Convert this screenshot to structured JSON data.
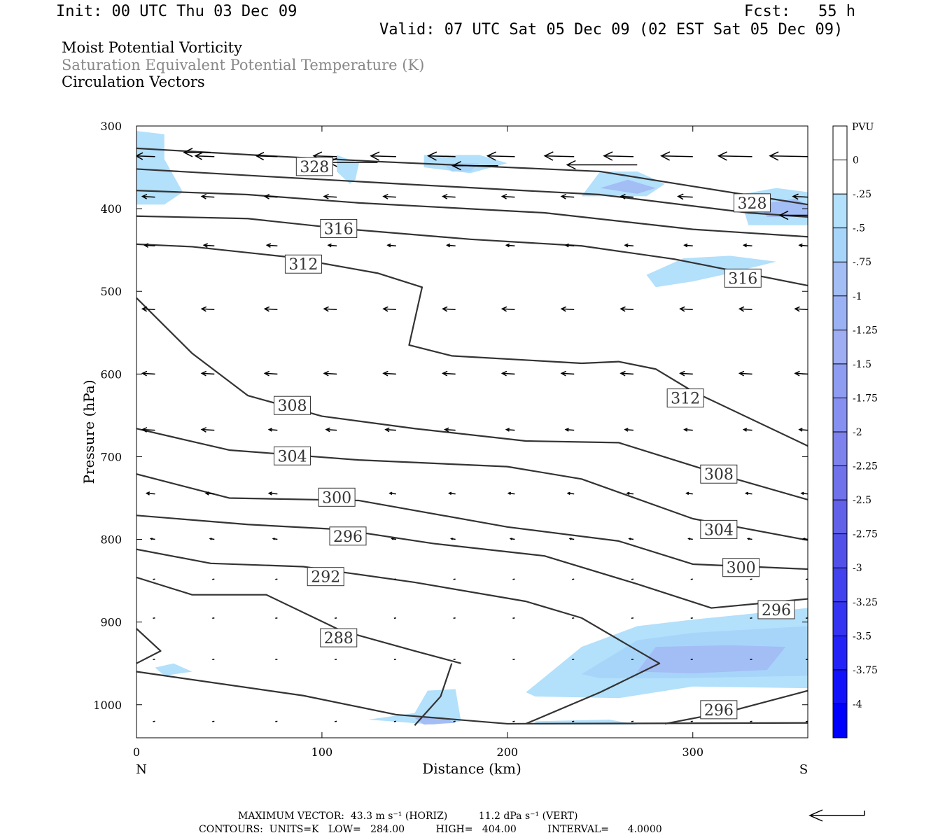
{
  "header": {
    "init": "Init: 00 UTC Thu 03 Dec 09",
    "fcst": "Fcst:   55 h",
    "valid": "Valid: 07 UTC Sat 05 Dec 09 (02 EST Sat 05 Dec 09)"
  },
  "fields": {
    "line1": "Moist Potential Vorticity",
    "line2": "Saturation Equivalent Potential Temperature (K)",
    "line3": "Circulation Vectors"
  },
  "footer": {
    "max_vector": "MAXIMUM VECTOR:  43.3 m s⁻¹ (HORIZ)          11.2 dPa s⁻¹ (VERT)",
    "contours": "CONTOURS:  UNITS=K   LOW=   284.00          HIGH=   404.00          INTERVAL=      4.0000"
  },
  "colors": {
    "contour": "#333333",
    "pv_light": "#b3e0fb",
    "pv_mid": "#a3bdf5",
    "pv_dark": "#7d82ec",
    "pv_max": "#0000ff"
  },
  "chart_data": {
    "type": "cross-section",
    "xlabel": "Distance (km)",
    "ylabel": "Pressure (hPa)",
    "xlim": [
      0,
      362
    ],
    "ylim": [
      1040,
      300
    ],
    "xticks": [
      0,
      100,
      200,
      300
    ],
    "yticks": [
      300,
      400,
      500,
      600,
      700,
      800,
      900,
      1000
    ],
    "x_end_labels": [
      "N",
      "S"
    ],
    "colorbar": {
      "title": "PVU",
      "levels": [
        "0",
        "-.25",
        "-.5",
        "-.75",
        "-1",
        "-1.25",
        "-1.5",
        "-1.75",
        "-2",
        "-2.25",
        "-2.5",
        "-2.75",
        "-3",
        "-3.25",
        "-3.5",
        "-3.75",
        "-4"
      ],
      "colors": [
        "#ffffff",
        "#ffffff",
        "#b3e0fb",
        "#a7d5fa",
        "#a3bdf5",
        "#9ab1f4",
        "#9fadf2",
        "#8e9df1",
        "#8690f0",
        "#7d82ec",
        "#6f72ea",
        "#6161e9",
        "#5151ea",
        "#4242ef",
        "#3434f2",
        "#2323f7",
        "#1212fa",
        "#0000ff"
      ]
    },
    "contour_labels": [
      {
        "value": "328",
        "x": 96,
        "p": 349
      },
      {
        "value": "328",
        "x": 332,
        "p": 393
      },
      {
        "value": "316",
        "x": 109,
        "p": 424
      },
      {
        "value": "316",
        "x": 327,
        "p": 484
      },
      {
        "value": "312",
        "x": 90,
        "p": 467
      },
      {
        "value": "312",
        "x": 296,
        "p": 629
      },
      {
        "value": "308",
        "x": 84,
        "p": 638
      },
      {
        "value": "308",
        "x": 314,
        "p": 721
      },
      {
        "value": "304",
        "x": 84,
        "p": 699
      },
      {
        "value": "304",
        "x": 314,
        "p": 788
      },
      {
        "value": "300",
        "x": 108,
        "p": 749
      },
      {
        "value": "300",
        "x": 326,
        "p": 834
      },
      {
        "value": "296",
        "x": 114,
        "p": 796
      },
      {
        "value": "296",
        "x": 345,
        "p": 885
      },
      {
        "value": "296",
        "x": 314,
        "p": 1006
      },
      {
        "value": "292",
        "x": 102,
        "p": 845
      },
      {
        "value": "288",
        "x": 109,
        "p": 919
      }
    ],
    "contours": [
      {
        "value": 328,
        "points": [
          [
            0,
            327
          ],
          [
            70,
            336
          ],
          [
            130,
            343
          ],
          [
            200,
            350
          ],
          [
            250,
            355
          ],
          [
            300,
            373
          ],
          [
            362,
            395
          ]
        ]
      },
      {
        "value": 324,
        "points": [
          [
            0,
            352
          ],
          [
            70,
            361
          ],
          [
            150,
            371
          ],
          [
            250,
            383
          ],
          [
            330,
            405
          ],
          [
            362,
            410
          ]
        ]
      },
      {
        "value": 320,
        "points": [
          [
            0,
            378
          ],
          [
            60,
            383
          ],
          [
            120,
            393
          ],
          [
            220,
            405
          ],
          [
            300,
            425
          ],
          [
            362,
            434
          ]
        ]
      },
      {
        "value": 316,
        "points": [
          [
            0,
            409
          ],
          [
            60,
            412
          ],
          [
            110,
            424
          ],
          [
            180,
            437
          ],
          [
            240,
            445
          ],
          [
            290,
            461
          ],
          [
            362,
            493
          ]
        ]
      },
      {
        "value": 312,
        "points": [
          [
            0,
            443
          ],
          [
            30,
            446
          ],
          [
            80,
            458
          ],
          [
            130,
            478
          ],
          [
            154,
            495
          ],
          [
            147,
            565
          ],
          [
            170,
            578
          ],
          [
            240,
            587
          ],
          [
            260,
            585
          ],
          [
            280,
            594
          ],
          [
            300,
            621
          ],
          [
            362,
            687
          ]
        ]
      },
      {
        "value": 308,
        "points": [
          [
            0,
            508
          ],
          [
            30,
            575
          ],
          [
            60,
            626
          ],
          [
            100,
            651
          ],
          [
            150,
            666
          ],
          [
            210,
            681
          ],
          [
            260,
            683
          ],
          [
            320,
            725
          ],
          [
            362,
            752
          ]
        ]
      },
      {
        "value": 304,
        "points": [
          [
            0,
            666
          ],
          [
            50,
            692
          ],
          [
            120,
            704
          ],
          [
            200,
            712
          ],
          [
            240,
            727
          ],
          [
            300,
            775
          ],
          [
            362,
            801
          ]
        ]
      },
      {
        "value": 300,
        "points": [
          [
            0,
            721
          ],
          [
            50,
            750
          ],
          [
            120,
            753
          ],
          [
            200,
            785
          ],
          [
            260,
            802
          ],
          [
            300,
            830
          ],
          [
            362,
            836
          ]
        ]
      },
      {
        "value": 296,
        "points": [
          [
            0,
            771
          ],
          [
            60,
            782
          ],
          [
            110,
            788
          ],
          [
            160,
            805
          ],
          [
            220,
            820
          ],
          [
            270,
            854
          ],
          [
            310,
            883
          ],
          [
            362,
            872
          ]
        ]
      },
      {
        "value": 292,
        "points": [
          [
            0,
            812
          ],
          [
            40,
            829
          ],
          [
            90,
            833
          ],
          [
            150,
            852
          ],
          [
            210,
            875
          ],
          [
            240,
            895
          ]
        ]
      },
      {
        "value": 288,
        "points": [
          [
            0,
            846
          ],
          [
            30,
            867
          ],
          [
            70,
            867
          ],
          [
            110,
            910
          ],
          [
            150,
            935
          ],
          [
            175,
            950
          ]
        ]
      },
      {
        "value": 288,
        "points": [
          [
            170,
            950
          ],
          [
            164,
            990
          ],
          [
            150,
            1025
          ]
        ]
      },
      {
        "value": 292,
        "points": [
          [
            240,
            895
          ],
          [
            282,
            950
          ],
          [
            250,
            985
          ],
          [
            210,
            1023
          ]
        ]
      },
      {
        "value": 296,
        "points": [
          [
            285,
            1023
          ],
          [
            320,
            1008
          ],
          [
            362,
            983
          ]
        ]
      },
      {
        "value": 284,
        "points": [
          [
            0,
            908
          ],
          [
            13,
            935
          ],
          [
            0,
            950
          ]
        ]
      },
      {
        "value": 284,
        "points": [
          [
            0,
            960
          ],
          [
            90,
            989
          ],
          [
            140,
            1012
          ],
          [
            200,
            1023
          ],
          [
            362,
            1022
          ]
        ]
      }
    ],
    "pv_regions": [
      {
        "level": -0.25,
        "points": [
          [
            0,
            306
          ],
          [
            15,
            310
          ],
          [
            15,
            340
          ],
          [
            25,
            380
          ],
          [
            15,
            395
          ],
          [
            0,
            395
          ]
        ]
      },
      {
        "level": -0.25,
        "points": [
          [
            108,
            335
          ],
          [
            120,
            345
          ],
          [
            118,
            365
          ],
          [
            115,
            370
          ],
          [
            108,
            355
          ]
        ]
      },
      {
        "level": -0.25,
        "points": [
          [
            155,
            335
          ],
          [
            185,
            335
          ],
          [
            200,
            345
          ],
          [
            180,
            357
          ],
          [
            155,
            350
          ]
        ]
      },
      {
        "level": -0.5,
        "points": [
          [
            165,
            345
          ],
          [
            185,
            345
          ],
          [
            180,
            355
          ],
          [
            170,
            355
          ]
        ]
      },
      {
        "level": -0.25,
        "points": [
          [
            240,
            385
          ],
          [
            250,
            355
          ],
          [
            270,
            355
          ],
          [
            285,
            370
          ],
          [
            275,
            385
          ]
        ]
      },
      {
        "level": -1,
        "points": [
          [
            250,
            375
          ],
          [
            265,
            365
          ],
          [
            280,
            375
          ],
          [
            270,
            382
          ]
        ]
      },
      {
        "level": -0.25,
        "points": [
          [
            325,
            383
          ],
          [
            345,
            375
          ],
          [
            362,
            380
          ],
          [
            362,
            420
          ],
          [
            330,
            420
          ]
        ]
      },
      {
        "level": -1,
        "points": [
          [
            335,
            395
          ],
          [
            355,
            388
          ],
          [
            362,
            395
          ],
          [
            362,
            410
          ],
          [
            340,
            410
          ]
        ]
      },
      {
        "level": -0.25,
        "points": [
          [
            275,
            480
          ],
          [
            295,
            460
          ],
          [
            320,
            457
          ],
          [
            345,
            464
          ],
          [
            320,
            478
          ],
          [
            300,
            488
          ],
          [
            280,
            495
          ]
        ]
      },
      {
        "level": -0.25,
        "points": [
          [
            210,
            985
          ],
          [
            240,
            930
          ],
          [
            270,
            905
          ],
          [
            300,
            897
          ],
          [
            362,
            883
          ],
          [
            362,
            980
          ],
          [
            300,
            978
          ],
          [
            260,
            992
          ],
          [
            215,
            990
          ]
        ]
      },
      {
        "level": -0.75,
        "points": [
          [
            240,
            963
          ],
          [
            270,
            922
          ],
          [
            300,
            913
          ],
          [
            362,
            905
          ],
          [
            362,
            965
          ],
          [
            290,
            968
          ],
          [
            250,
            968
          ]
        ]
      },
      {
        "level": -1,
        "points": [
          [
            270,
            960
          ],
          [
            280,
            930
          ],
          [
            320,
            928
          ],
          [
            350,
            930
          ],
          [
            340,
            958
          ],
          [
            300,
            962
          ]
        ]
      },
      {
        "level": -0.25,
        "points": [
          [
            10,
            955
          ],
          [
            20,
            950
          ],
          [
            30,
            960
          ],
          [
            15,
            965
          ]
        ]
      },
      {
        "level": -0.25,
        "points": [
          [
            125,
            1018
          ],
          [
            150,
            1010
          ],
          [
            157,
            983
          ],
          [
            172,
            981
          ],
          [
            175,
            1020
          ],
          [
            160,
            1024
          ]
        ]
      },
      {
        "level": -1,
        "points": [
          [
            150,
            1016
          ],
          [
            165,
            1015
          ],
          [
            172,
            1022
          ],
          [
            155,
            1024
          ]
        ]
      },
      {
        "level": -0.25,
        "points": [
          [
            215,
            1020
          ],
          [
            255,
            1018
          ],
          [
            270,
            1024
          ],
          [
            215,
            1024
          ]
        ]
      }
    ],
    "vectors_long": [
      {
        "x": 40,
        "p": 332,
        "u": -38,
        "w": 0
      },
      {
        "x": 130,
        "p": 344,
        "u": -70,
        "w": 0
      },
      {
        "x": 195,
        "p": 348,
        "u": -65,
        "w": 0
      },
      {
        "x": 270,
        "p": 347,
        "u": -100,
        "w": 0
      },
      {
        "x": 362,
        "p": 408,
        "u": -40,
        "w": 0
      }
    ],
    "vector_grid": {
      "x": [
        10,
        42,
        76,
        108,
        140,
        172,
        204,
        236,
        268,
        300,
        332,
        362
      ],
      "p": [
        337,
        386,
        445,
        522,
        600,
        668,
        745,
        800,
        848,
        895,
        945,
        1020
      ],
      "u": [
        [
          -18,
          -18,
          -20,
          -22,
          -24,
          -26,
          -26,
          -28,
          -28,
          -30,
          -32,
          -36
        ],
        [
          -12,
          -12,
          -12,
          -12,
          -12,
          -12,
          -12,
          -12,
          -12,
          -14,
          -14,
          -14
        ],
        [
          -10,
          -10,
          -10,
          -8,
          -8,
          -8,
          -8,
          -8,
          -8,
          -8,
          -8,
          -8
        ],
        [
          -12,
          -12,
          -12,
          -12,
          -12,
          -12,
          -12,
          -12,
          -12,
          -12,
          -12,
          -12
        ],
        [
          -12,
          -12,
          -12,
          -12,
          -12,
          -12,
          -12,
          -12,
          -12,
          -12,
          -12,
          -12
        ],
        [
          -12,
          -12,
          -8,
          -10,
          -10,
          -10,
          -8,
          -8,
          -8,
          -8,
          -8,
          -8
        ],
        [
          -8,
          -8,
          -8,
          -8,
          -6,
          -6,
          -6,
          -6,
          -6,
          -6,
          -6,
          -6
        ],
        [
          -4,
          -4,
          -4,
          -4,
          -4,
          -4,
          -4,
          -4,
          -4,
          -4,
          -4,
          -4
        ],
        [
          -2,
          -2,
          -2,
          -2,
          -2,
          -2,
          -2,
          -2,
          -2,
          -2,
          -2,
          -2
        ],
        [
          -2,
          -2,
          -2,
          -2,
          -2,
          -2,
          -2,
          -2,
          -2,
          -2,
          -2,
          -2
        ],
        [
          -2,
          -2,
          -2,
          -2,
          -2,
          -2,
          -2,
          -2,
          -2,
          -2,
          -2,
          -2
        ],
        [
          -2,
          -2,
          -2,
          -2,
          -2,
          -2,
          -2,
          -2,
          -2,
          -2,
          -2,
          -2
        ]
      ]
    }
  }
}
